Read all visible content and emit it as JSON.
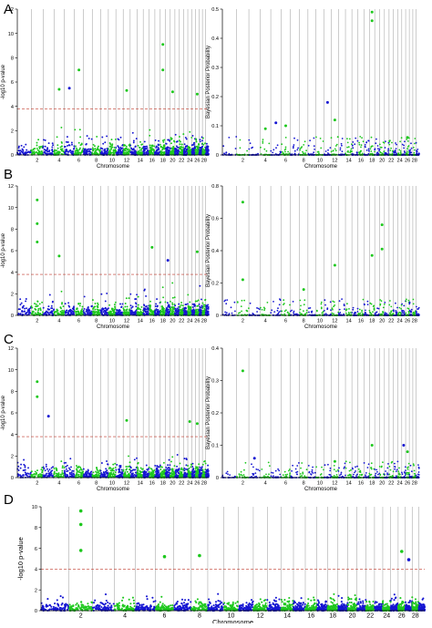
{
  "colors": {
    "blue": "#1515d2",
    "green": "#1ec81e",
    "grid": "#9a9a9a",
    "threshold": "#c0392b"
  },
  "panels": [
    {
      "letter": "A"
    },
    {
      "letter": "B"
    },
    {
      "letter": "C"
    },
    {
      "letter": "D"
    }
  ],
  "chart_data": [
    {
      "panel": "A",
      "type": "scatter",
      "kind": "manhattan",
      "xlabel": "Chromosome",
      "ylabel": "-log10 p-value",
      "ylim": [
        0,
        12
      ],
      "yticks": [
        0,
        2,
        4,
        6,
        8,
        10,
        12
      ],
      "xticklabels": [
        "2",
        "4",
        "6",
        "8",
        "10",
        "12",
        "14",
        "16",
        "18",
        "20",
        "22",
        "24",
        "26",
        "28"
      ],
      "threshold": 3.8,
      "peaks": [
        {
          "chromosome": 18,
          "value": 9.1
        },
        {
          "chromosome": 18,
          "value": 7.0
        },
        {
          "chromosome": 6,
          "value": 7.0
        },
        {
          "chromosome": 4,
          "value": 5.4
        },
        {
          "chromosome": 5,
          "value": 5.5
        },
        {
          "chromosome": 12,
          "value": 5.3
        },
        {
          "chromosome": 20,
          "value": 5.2
        },
        {
          "chromosome": 26,
          "value": 5.0
        }
      ]
    },
    {
      "panel": "A",
      "type": "scatter",
      "kind": "manhattan",
      "xlabel": "Chromosome",
      "ylabel": "Bayesian Posterior Probability",
      "ylim": [
        0,
        0.5
      ],
      "yticks": [
        0,
        0.1,
        0.2,
        0.3,
        0.4,
        0.5
      ],
      "xticklabels": [
        "2",
        "4",
        "6",
        "8",
        "10",
        "12",
        "14",
        "16",
        "18",
        "20",
        "22",
        "24",
        "26",
        "28"
      ],
      "peaks": [
        {
          "chromosome": 18,
          "value": 0.49
        },
        {
          "chromosome": 18,
          "value": 0.46
        },
        {
          "chromosome": 11,
          "value": 0.18
        },
        {
          "chromosome": 12,
          "value": 0.12
        },
        {
          "chromosome": 5,
          "value": 0.11
        },
        {
          "chromosome": 4,
          "value": 0.09
        },
        {
          "chromosome": 6,
          "value": 0.1
        },
        {
          "chromosome": 26,
          "value": 0.06
        }
      ]
    },
    {
      "panel": "B",
      "type": "scatter",
      "kind": "manhattan",
      "xlabel": "Chromosome",
      "ylabel": "-log10 p-value",
      "ylim": [
        0,
        12
      ],
      "yticks": [
        0,
        2,
        4,
        6,
        8,
        10,
        12
      ],
      "xticklabels": [
        "2",
        "4",
        "6",
        "8",
        "10",
        "12",
        "14",
        "16",
        "18",
        "20",
        "22",
        "24",
        "26",
        "28"
      ],
      "threshold": 3.8,
      "peaks": [
        {
          "chromosome": 2,
          "value": 10.7
        },
        {
          "chromosome": 2,
          "value": 8.5
        },
        {
          "chromosome": 2,
          "value": 6.8
        },
        {
          "chromosome": 16,
          "value": 6.3
        },
        {
          "chromosome": 4,
          "value": 5.5
        },
        {
          "chromosome": 19,
          "value": 5.1
        },
        {
          "chromosome": 26,
          "value": 5.9
        }
      ]
    },
    {
      "panel": "B",
      "type": "scatter",
      "kind": "manhattan",
      "xlabel": "Chromosome",
      "ylabel": "Bayesian Posterior Probability",
      "ylim": [
        0,
        0.8
      ],
      "yticks": [
        0,
        0.2,
        0.4,
        0.6,
        0.8
      ],
      "xticklabels": [
        "2",
        "4",
        "6",
        "8",
        "10",
        "12",
        "14",
        "16",
        "18",
        "20",
        "22",
        "24",
        "26",
        "28"
      ],
      "peaks": [
        {
          "chromosome": 2,
          "value": 0.7
        },
        {
          "chromosome": 20,
          "value": 0.56
        },
        {
          "chromosome": 20,
          "value": 0.41
        },
        {
          "chromosome": 18,
          "value": 0.37
        },
        {
          "chromosome": 12,
          "value": 0.31
        },
        {
          "chromosome": 2,
          "value": 0.22
        },
        {
          "chromosome": 8,
          "value": 0.16
        }
      ]
    },
    {
      "panel": "C",
      "type": "scatter",
      "kind": "manhattan",
      "xlabel": "Chromosome",
      "ylabel": "-log10 p-value",
      "ylim": [
        0,
        12
      ],
      "yticks": [
        0,
        2,
        4,
        6,
        8,
        10,
        12
      ],
      "xticklabels": [
        "2",
        "4",
        "6",
        "8",
        "10",
        "12",
        "14",
        "16",
        "18",
        "20",
        "22",
        "24",
        "26",
        "28"
      ],
      "threshold": 3.8,
      "peaks": [
        {
          "chromosome": 2,
          "value": 8.9
        },
        {
          "chromosome": 2,
          "value": 7.5
        },
        {
          "chromosome": 3,
          "value": 5.7
        },
        {
          "chromosome": 12,
          "value": 5.3
        },
        {
          "chromosome": 24,
          "value": 5.2
        },
        {
          "chromosome": 26,
          "value": 5.0
        }
      ]
    },
    {
      "panel": "C",
      "type": "scatter",
      "kind": "manhattan",
      "xlabel": "Chromosome",
      "ylabel": "Bayesian Posterior Probability",
      "ylim": [
        0,
        0.4
      ],
      "yticks": [
        0,
        0.1,
        0.2,
        0.3,
        0.4
      ],
      "xticklabels": [
        "2",
        "4",
        "6",
        "8",
        "10",
        "12",
        "14",
        "16",
        "18",
        "20",
        "22",
        "24",
        "26",
        "28"
      ],
      "peaks": [
        {
          "chromosome": 2,
          "value": 0.33
        },
        {
          "chromosome": 18,
          "value": 0.1
        },
        {
          "chromosome": 25,
          "value": 0.1
        },
        {
          "chromosome": 26,
          "value": 0.08
        },
        {
          "chromosome": 3,
          "value": 0.06
        },
        {
          "chromosome": 12,
          "value": 0.05
        }
      ]
    },
    {
      "panel": "D",
      "type": "scatter",
      "kind": "manhattan",
      "xlabel": "Chromosome",
      "ylabel": "-log10 p-value",
      "ylim": [
        0,
        10
      ],
      "yticks": [
        0,
        2,
        4,
        6,
        8,
        10
      ],
      "xticklabels": [
        "2",
        "4",
        "6",
        "8",
        "10",
        "12",
        "14",
        "16",
        "18",
        "20",
        "22",
        "24",
        "26",
        "28"
      ],
      "threshold": 4,
      "peaks": [
        {
          "chromosome": 2,
          "value": 9.6
        },
        {
          "chromosome": 2,
          "value": 8.3
        },
        {
          "chromosome": 2,
          "value": 5.8
        },
        {
          "chromosome": 26,
          "value": 5.7
        },
        {
          "chromosome": 8,
          "value": 5.3
        },
        {
          "chromosome": 6,
          "value": 5.2
        },
        {
          "chromosome": 27,
          "value": 4.9
        }
      ]
    }
  ]
}
